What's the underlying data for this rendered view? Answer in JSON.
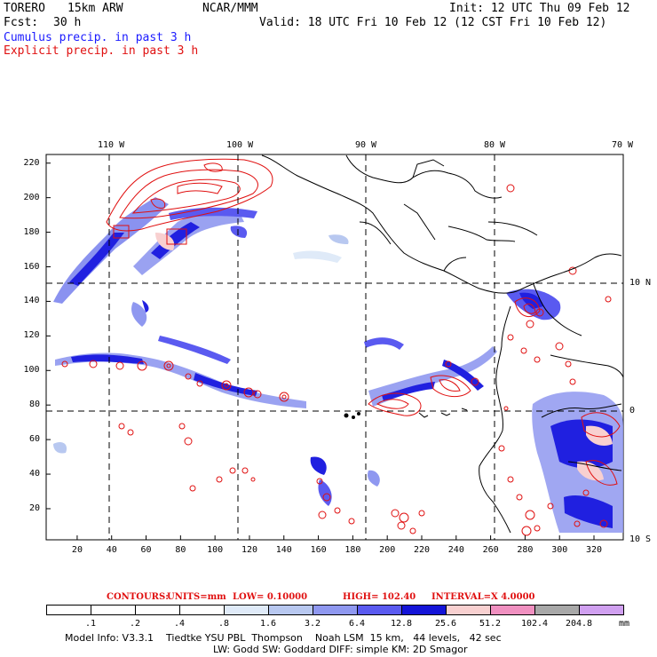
{
  "header": {
    "model": "TORERO",
    "resolution": "15km ARW",
    "center": "NCAR/MMM",
    "init": "Init: 12 UTC Thu 09 Feb 12",
    "fcst_label": "Fcst:",
    "fcst_hours": "30 h",
    "valid": "Valid: 18 UTC Fri 10 Feb 12 (12 CST Fri 10 Feb 12)"
  },
  "legend": {
    "cumulus": "Cumulus precip. in past 3 h",
    "explicit": "Explicit precip. in past 3 h"
  },
  "map": {
    "lon_labels": [
      "110 W",
      "100 W",
      "90 W",
      "80 W",
      "70 W"
    ],
    "lat_labels": [
      "10 N",
      "0",
      "10 S"
    ],
    "x_ticks": [
      "20",
      "40",
      "60",
      "80",
      "100",
      "120",
      "140",
      "160",
      "180",
      "200",
      "220",
      "240",
      "260",
      "280",
      "300",
      "320"
    ],
    "y_ticks": [
      "20",
      "40",
      "60",
      "80",
      "100",
      "120",
      "140",
      "160",
      "180",
      "200",
      "220"
    ],
    "colors": {
      "cumulus_fill": "#2020e0",
      "explicit_contour": "#e01010"
    }
  },
  "contours": {
    "label": "CONTOURS:",
    "units": "UNITS=mm",
    "low": "LOW= 0.10000",
    "high": "HIGH= 102.40",
    "interval": "INTERVAL=X 4.0000"
  },
  "colorbar": {
    "levels": [
      ".1",
      ".2",
      ".4",
      ".8",
      "1.6",
      "3.2",
      "6.4",
      "12.8",
      "25.6",
      "51.2",
      "102.4",
      "204.8"
    ],
    "unit": "mm",
    "colors": [
      "#ffffff",
      "#ffffff",
      "#ffffff",
      "#ffffff",
      "#dfeaf8",
      "#b8c8f0",
      "#8f98f0",
      "#5a5af0",
      "#1414d8",
      "#f8d0d0",
      "#f090c0",
      "#a8a8a8",
      "#d0a0f0"
    ]
  },
  "footer": {
    "line1": "Model Info: V3.3.1    Tiedtke YSU PBL  Thompson    Noah LSM  15 km,   44 levels,   42 sec",
    "line2": "LW: Godd SW: Goddard DIFF: simple KM: 2D Smagor"
  }
}
